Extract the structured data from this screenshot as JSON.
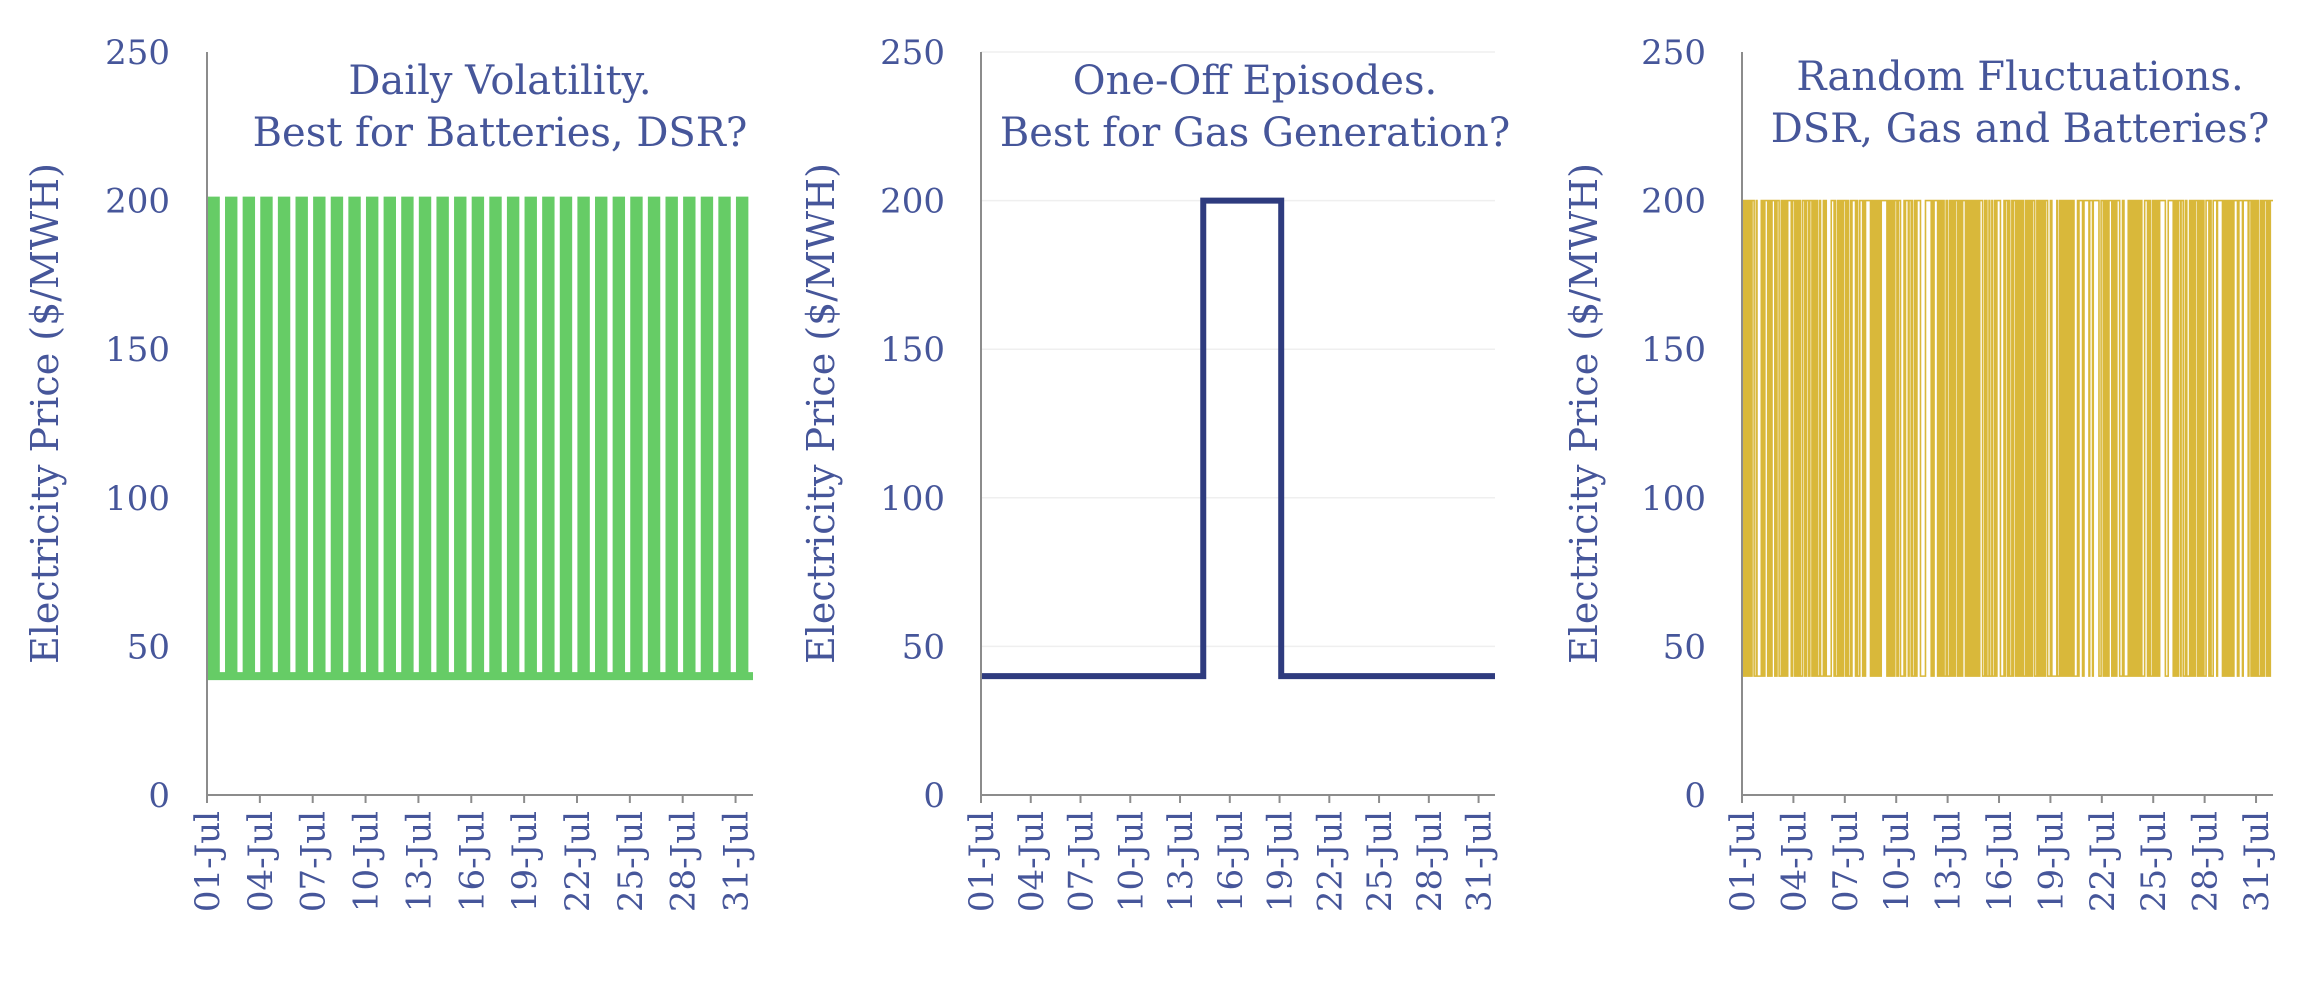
{
  "chart_data": [
    {
      "type": "line",
      "title_lines": [
        "Daily Volatility.",
        "Best for Batteries, DSR?"
      ],
      "xlabel": "",
      "ylabel": "Electricity Price ($/MWH)",
      "ylim": [
        0,
        250
      ],
      "yticks": [
        "0",
        "50",
        "100",
        "150",
        "200",
        "250"
      ],
      "xlim": [
        1,
        31.99
      ],
      "xtick_labels": [
        "01-Jul",
        "04-Jul",
        "07-Jul",
        "10-Jul",
        "13-Jul",
        "16-Jul",
        "19-Jul",
        "22-Jul",
        "25-Jul",
        "28-Jul",
        "31-Jul"
      ],
      "grid": false,
      "legend": "none",
      "series": [
        {
          "color": "#66CC66",
          "pattern": "daily-peak",
          "baseline": 40,
          "peak": 200,
          "peak_window_fraction": [
            0.25,
            0.5
          ],
          "days": 31
        }
      ]
    },
    {
      "type": "line",
      "title_lines": [
        "One-Off Episodes.",
        "Best for Gas Generation?"
      ],
      "xlabel": "",
      "ylabel": "Electricity Price ($/MWH)",
      "ylim": [
        0,
        250
      ],
      "yticks": [
        "0",
        "50",
        "100",
        "150",
        "200",
        "250"
      ],
      "xlim": [
        1,
        31.99
      ],
      "xtick_labels": [
        "01-Jul",
        "04-Jul",
        "07-Jul",
        "10-Jul",
        "13-Jul",
        "16-Jul",
        "19-Jul",
        "22-Jul",
        "25-Jul",
        "28-Jul",
        "31-Jul"
      ],
      "grid": true,
      "legend": "none",
      "series": [
        {
          "color": "#2E3B7E",
          "pattern": "step",
          "x": [
            1,
            14.4,
            14.4,
            19.1,
            19.1,
            31.99
          ],
          "y": [
            40,
            40,
            200,
            200,
            40,
            40
          ]
        }
      ]
    },
    {
      "type": "line",
      "title_lines": [
        "Random Fluctuations.",
        "DSR, Gas and Batteries?"
      ],
      "xlabel": "",
      "ylabel": "Electricity Price ($/MWH)",
      "ylim": [
        0,
        250
      ],
      "yticks": [
        "0",
        "50",
        "100",
        "150",
        "200",
        "250"
      ],
      "xlim": [
        1,
        31.99
      ],
      "xtick_labels": [
        "01-Jul",
        "04-Jul",
        "07-Jul",
        "10-Jul",
        "13-Jul",
        "16-Jul",
        "19-Jul",
        "22-Jul",
        "25-Jul",
        "28-Jul",
        "31-Jul"
      ],
      "grid": false,
      "legend": "none",
      "series": [
        {
          "color": "#D9B83A",
          "pattern": "random-spikes",
          "baseline": 40,
          "peak": 200,
          "hourly_resolution": true,
          "days": 31
        }
      ]
    }
  ]
}
